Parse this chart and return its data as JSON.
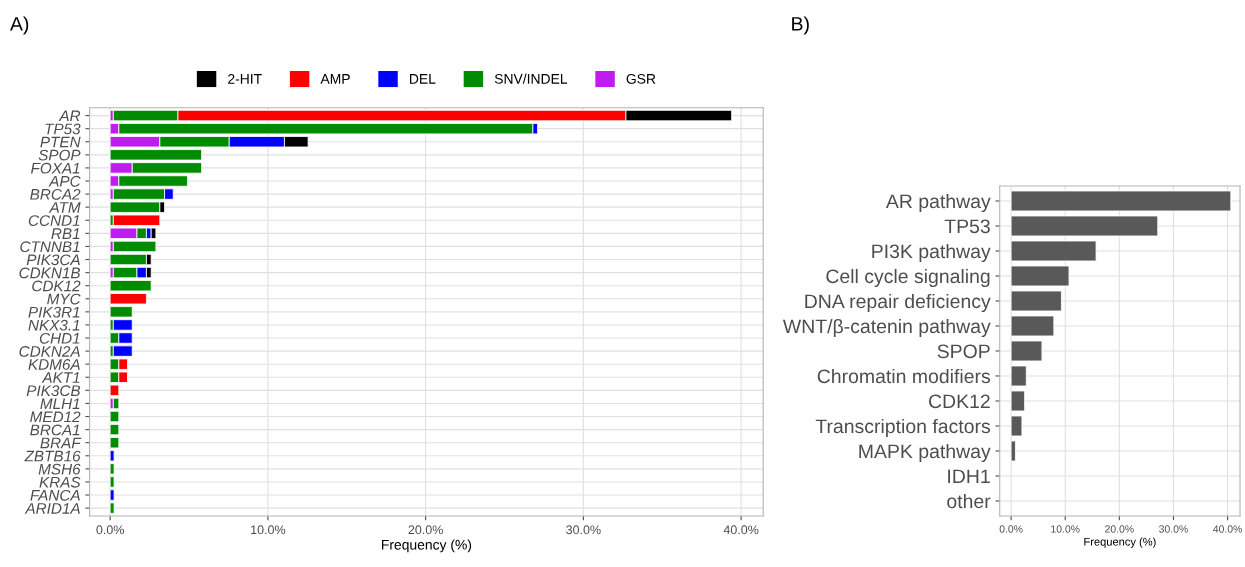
{
  "chart_data": [
    {
      "type": "bar",
      "orientation": "horizontal",
      "stacked": true,
      "title": "A)",
      "xlabel": "Frequency (%)",
      "categories": [
        "AR",
        "TP53",
        "PTEN",
        "SPOP",
        "FOXA1",
        "APC",
        "BRCA2",
        "ATM",
        "CCND1",
        "RB1",
        "CTNNB1",
        "PIK3CA",
        "CDKN1B",
        "CDK12",
        "MYC",
        "PIK3R1",
        "NKX3.1",
        "CHD1",
        "CDKN2A",
        "KDM6A",
        "AKT1",
        "PIK3CB",
        "MLH1",
        "MED12",
        "BRCA1",
        "BRAF",
        "ZBTB16",
        "MSH6",
        "KRAS",
        "FANCA",
        "ARID1A"
      ],
      "series": [
        {
          "name": "GSR",
          "color": "#bf1cf0",
          "values": [
            0.2,
            0.55,
            3.15,
            null,
            1.4,
            0.55,
            0.2,
            null,
            null,
            1.7,
            0.2,
            null,
            0.2,
            null,
            null,
            null,
            null,
            null,
            null,
            null,
            null,
            null,
            0.2,
            null,
            null,
            null,
            null,
            null,
            null,
            null,
            null
          ]
        },
        {
          "name": "SNV/INDEL",
          "color": "#008b00",
          "values": [
            4.1,
            26.25,
            4.4,
            5.8,
            4.4,
            4.35,
            3.25,
            3.15,
            0.2,
            0.6,
            2.7,
            2.3,
            1.5,
            2.6,
            null,
            1.4,
            0.2,
            0.55,
            0.2,
            0.55,
            0.55,
            null,
            0.35,
            0.55,
            0.55,
            0.55,
            null,
            0.25,
            0.25,
            null,
            0.25
          ]
        },
        {
          "name": "DEL",
          "color": "#0000ff",
          "values": [
            null,
            0.3,
            3.5,
            null,
            null,
            null,
            0.55,
            null,
            null,
            0.3,
            null,
            null,
            0.6,
            null,
            null,
            null,
            1.2,
            0.85,
            1.2,
            null,
            null,
            null,
            null,
            null,
            null,
            null,
            0.25,
            null,
            null,
            0.25,
            null
          ]
        },
        {
          "name": "AMP",
          "color": "#ff0000",
          "values": [
            28.4,
            null,
            null,
            null,
            null,
            null,
            null,
            null,
            2.95,
            null,
            null,
            null,
            null,
            null,
            2.3,
            null,
            null,
            null,
            null,
            0.55,
            0.55,
            0.55,
            null,
            null,
            null,
            null,
            null,
            null,
            null,
            null,
            null
          ]
        },
        {
          "name": "2-HIT",
          "color": "#000000",
          "values": [
            6.7,
            null,
            1.5,
            null,
            null,
            null,
            null,
            0.3,
            null,
            0.3,
            null,
            0.3,
            0.3,
            null,
            null,
            null,
            null,
            null,
            null,
            null,
            null,
            null,
            null,
            null,
            null,
            null,
            null,
            null,
            null,
            null,
            null
          ]
        }
      ],
      "xlim": [
        -1.3,
        41.4
      ],
      "xticks": [
        {
          "value": 0,
          "label": "0.0%"
        },
        {
          "value": 10,
          "label": "10.0%"
        },
        {
          "value": 20,
          "label": "20.0%"
        },
        {
          "value": 30,
          "label": "30.0%"
        },
        {
          "value": 40,
          "label": "40.0%"
        }
      ],
      "grid": true,
      "legend": "top"
    },
    {
      "type": "bar",
      "orientation": "horizontal",
      "title": "B)",
      "xlabel": "Frequency (%)",
      "categories": [
        "AR pathway",
        "TP53",
        "PI3K pathway",
        "Cell cycle signaling",
        "DNA repair deficiency",
        "WNT/β-catenin pathway",
        "SPOP",
        "Chromatin modifiers",
        "CDK12",
        "Transcription factors",
        "MAPK pathway",
        "IDH1",
        "other"
      ],
      "values": [
        40.6,
        27.1,
        15.7,
        10.7,
        9.3,
        7.9,
        5.7,
        2.8,
        2.5,
        2,
        0.8,
        null,
        null
      ],
      "color": "#595959",
      "xlim": [
        -2.1,
        42.3
      ],
      "xticks": [
        {
          "value": 0,
          "label": "0.0%"
        },
        {
          "value": 10,
          "label": "10.0%"
        },
        {
          "value": 20,
          "label": "20.0%"
        },
        {
          "value": 30,
          "label": "30.0%"
        },
        {
          "value": 40,
          "label": "40.0%"
        }
      ],
      "grid": true
    }
  ]
}
